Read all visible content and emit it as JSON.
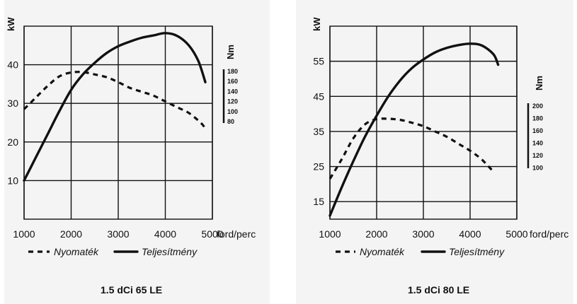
{
  "chart_data": [
    {
      "type": "line",
      "title": "1.5 dCi 65 LE",
      "xlabel": "ford/perc",
      "ylabel": "kW",
      "secondary_ylabel": "Nm",
      "xlim": [
        1000,
        5000
      ],
      "ylim": [
        0,
        50
      ],
      "x_ticks": [
        1000,
        2000,
        3000,
        4000,
        5000
      ],
      "y_ticks": [
        10,
        20,
        30,
        40
      ],
      "secondary_ticks": [
        180,
        160,
        140,
        120,
        100,
        80
      ],
      "grid": true,
      "legend_position": "bottom",
      "series": [
        {
          "name": "Nyomaték",
          "style": "dashed",
          "x": [
            1000,
            1250,
            1500,
            1750,
            2000,
            2250,
            2500,
            2750,
            3000,
            3250,
            3500,
            3750,
            4000,
            4250,
            4500,
            4750,
            4850
          ],
          "y": [
            28.5,
            31.5,
            34.5,
            37,
            38,
            38.1,
            37.5,
            36.8,
            35.5,
            34,
            33,
            32,
            30.5,
            29,
            27.5,
            25,
            23.5
          ]
        },
        {
          "name": "Teljesítmény",
          "style": "solid",
          "x": [
            1000,
            1250,
            1500,
            1750,
            2000,
            2250,
            2500,
            2750,
            3000,
            3250,
            3500,
            3750,
            4000,
            4250,
            4500,
            4700,
            4850
          ],
          "y": [
            10,
            16,
            22,
            28,
            33.5,
            37.5,
            40.5,
            43,
            44.8,
            46,
            47,
            47.6,
            48.2,
            47.5,
            45,
            41,
            35.5
          ]
        }
      ]
    },
    {
      "type": "line",
      "title": "1.5 dCi 80 LE",
      "xlabel": "ford/perc",
      "ylabel": "kW",
      "secondary_ylabel": "Nm",
      "xlim": [
        1000,
        5000
      ],
      "ylim": [
        10,
        65
      ],
      "x_ticks": [
        1000,
        2000,
        3000,
        4000,
        5000
      ],
      "y_ticks": [
        15,
        25,
        35,
        45,
        55
      ],
      "secondary_ticks": [
        200,
        180,
        160,
        140,
        120,
        100
      ],
      "grid": true,
      "legend_position": "bottom",
      "series": [
        {
          "name": "Nyomaték",
          "style": "dashed",
          "x": [
            1000,
            1250,
            1500,
            1750,
            2000,
            2250,
            2500,
            2750,
            3000,
            3250,
            3500,
            3750,
            4000,
            4250,
            4500
          ],
          "y": [
            21.5,
            27,
            33,
            37,
            38.5,
            38.6,
            38.3,
            37.5,
            36.5,
            35,
            33.5,
            31.5,
            29.5,
            27,
            23.5
          ]
        },
        {
          "name": "Teljesítmény",
          "style": "solid",
          "x": [
            1000,
            1250,
            1500,
            1750,
            2000,
            2250,
            2500,
            2750,
            3000,
            3250,
            3500,
            3750,
            4000,
            4250,
            4500,
            4600
          ],
          "y": [
            11,
            19,
            26.5,
            33.5,
            39.5,
            45,
            49.5,
            53,
            55.5,
            57.5,
            58.8,
            59.6,
            60,
            59.5,
            57,
            54
          ]
        }
      ]
    }
  ]
}
